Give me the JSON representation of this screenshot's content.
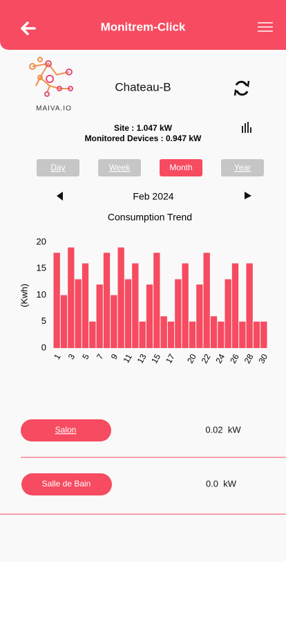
{
  "header": {
    "title": "Monitrem-Click"
  },
  "logo": {
    "text": "MAIVA.IO"
  },
  "site": {
    "name": "Chateau-B",
    "site_power": "Site :  1.047 kW",
    "monitored": "Monitored Devices :  0.947 kW"
  },
  "tabs": [
    "Day",
    "Week",
    "Month",
    "Year"
  ],
  "period": "Feb 2024",
  "chart_data": {
    "type": "bar",
    "title": "Consumption Trend",
    "y_label": "(Kwh)",
    "color": "#f64b60",
    "categories": [
      "1",
      null,
      "3",
      null,
      "5",
      null,
      "7",
      null,
      "9",
      null,
      "11",
      null,
      "13",
      null,
      "15",
      null,
      "17",
      null,
      null,
      "20",
      null,
      "22",
      null,
      "24",
      null,
      "26",
      null,
      "28",
      null,
      "30"
    ],
    "values": [
      18,
      10,
      19,
      13,
      16,
      5,
      12,
      18,
      10,
      19,
      13,
      16,
      5,
      12,
      18,
      6,
      5,
      13,
      16,
      5,
      12,
      18,
      6,
      5,
      13,
      16,
      5,
      16,
      5,
      5
    ],
    "ylim": [
      0,
      20
    ],
    "yticks": [
      0,
      5,
      10,
      15,
      20
    ],
    "grid": false
  },
  "devices": [
    {
      "name": "Salon",
      "value": "0.02  kW"
    },
    {
      "name": "Salle de Bain",
      "value": "0.0  kW"
    }
  ]
}
